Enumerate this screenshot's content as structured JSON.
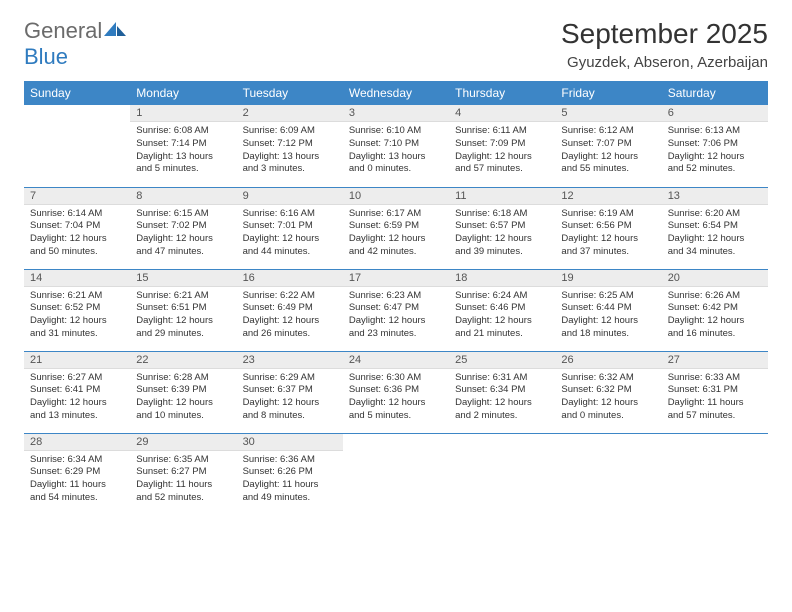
{
  "brand": {
    "word1": "General",
    "word2": "Blue"
  },
  "title": "September 2025",
  "location": "Gyuzdek, Abseron, Azerbaijan",
  "colors": {
    "header_bg": "#3d86c6",
    "header_text": "#ffffff",
    "daynum_bg": "#ededed",
    "daynum_text": "#555555",
    "body_text": "#333333",
    "border": "#3d86c6",
    "logo_gray": "#6b6b6b",
    "logo_blue": "#2f7bbf",
    "page_bg": "#ffffff"
  },
  "typography": {
    "title_fontsize": 28,
    "location_fontsize": 15,
    "weekday_fontsize": 12,
    "daynum_fontsize": 11,
    "body_fontsize": 9.5
  },
  "weekdays": [
    "Sunday",
    "Monday",
    "Tuesday",
    "Wednesday",
    "Thursday",
    "Friday",
    "Saturday"
  ],
  "weeks": [
    [
      null,
      {
        "n": "1",
        "sr": "Sunrise: 6:08 AM",
        "ss": "Sunset: 7:14 PM",
        "dl": "Daylight: 13 hours and 5 minutes."
      },
      {
        "n": "2",
        "sr": "Sunrise: 6:09 AM",
        "ss": "Sunset: 7:12 PM",
        "dl": "Daylight: 13 hours and 3 minutes."
      },
      {
        "n": "3",
        "sr": "Sunrise: 6:10 AM",
        "ss": "Sunset: 7:10 PM",
        "dl": "Daylight: 13 hours and 0 minutes."
      },
      {
        "n": "4",
        "sr": "Sunrise: 6:11 AM",
        "ss": "Sunset: 7:09 PM",
        "dl": "Daylight: 12 hours and 57 minutes."
      },
      {
        "n": "5",
        "sr": "Sunrise: 6:12 AM",
        "ss": "Sunset: 7:07 PM",
        "dl": "Daylight: 12 hours and 55 minutes."
      },
      {
        "n": "6",
        "sr": "Sunrise: 6:13 AM",
        "ss": "Sunset: 7:06 PM",
        "dl": "Daylight: 12 hours and 52 minutes."
      }
    ],
    [
      {
        "n": "7",
        "sr": "Sunrise: 6:14 AM",
        "ss": "Sunset: 7:04 PM",
        "dl": "Daylight: 12 hours and 50 minutes."
      },
      {
        "n": "8",
        "sr": "Sunrise: 6:15 AM",
        "ss": "Sunset: 7:02 PM",
        "dl": "Daylight: 12 hours and 47 minutes."
      },
      {
        "n": "9",
        "sr": "Sunrise: 6:16 AM",
        "ss": "Sunset: 7:01 PM",
        "dl": "Daylight: 12 hours and 44 minutes."
      },
      {
        "n": "10",
        "sr": "Sunrise: 6:17 AM",
        "ss": "Sunset: 6:59 PM",
        "dl": "Daylight: 12 hours and 42 minutes."
      },
      {
        "n": "11",
        "sr": "Sunrise: 6:18 AM",
        "ss": "Sunset: 6:57 PM",
        "dl": "Daylight: 12 hours and 39 minutes."
      },
      {
        "n": "12",
        "sr": "Sunrise: 6:19 AM",
        "ss": "Sunset: 6:56 PM",
        "dl": "Daylight: 12 hours and 37 minutes."
      },
      {
        "n": "13",
        "sr": "Sunrise: 6:20 AM",
        "ss": "Sunset: 6:54 PM",
        "dl": "Daylight: 12 hours and 34 minutes."
      }
    ],
    [
      {
        "n": "14",
        "sr": "Sunrise: 6:21 AM",
        "ss": "Sunset: 6:52 PM",
        "dl": "Daylight: 12 hours and 31 minutes."
      },
      {
        "n": "15",
        "sr": "Sunrise: 6:21 AM",
        "ss": "Sunset: 6:51 PM",
        "dl": "Daylight: 12 hours and 29 minutes."
      },
      {
        "n": "16",
        "sr": "Sunrise: 6:22 AM",
        "ss": "Sunset: 6:49 PM",
        "dl": "Daylight: 12 hours and 26 minutes."
      },
      {
        "n": "17",
        "sr": "Sunrise: 6:23 AM",
        "ss": "Sunset: 6:47 PM",
        "dl": "Daylight: 12 hours and 23 minutes."
      },
      {
        "n": "18",
        "sr": "Sunrise: 6:24 AM",
        "ss": "Sunset: 6:46 PM",
        "dl": "Daylight: 12 hours and 21 minutes."
      },
      {
        "n": "19",
        "sr": "Sunrise: 6:25 AM",
        "ss": "Sunset: 6:44 PM",
        "dl": "Daylight: 12 hours and 18 minutes."
      },
      {
        "n": "20",
        "sr": "Sunrise: 6:26 AM",
        "ss": "Sunset: 6:42 PM",
        "dl": "Daylight: 12 hours and 16 minutes."
      }
    ],
    [
      {
        "n": "21",
        "sr": "Sunrise: 6:27 AM",
        "ss": "Sunset: 6:41 PM",
        "dl": "Daylight: 12 hours and 13 minutes."
      },
      {
        "n": "22",
        "sr": "Sunrise: 6:28 AM",
        "ss": "Sunset: 6:39 PM",
        "dl": "Daylight: 12 hours and 10 minutes."
      },
      {
        "n": "23",
        "sr": "Sunrise: 6:29 AM",
        "ss": "Sunset: 6:37 PM",
        "dl": "Daylight: 12 hours and 8 minutes."
      },
      {
        "n": "24",
        "sr": "Sunrise: 6:30 AM",
        "ss": "Sunset: 6:36 PM",
        "dl": "Daylight: 12 hours and 5 minutes."
      },
      {
        "n": "25",
        "sr": "Sunrise: 6:31 AM",
        "ss": "Sunset: 6:34 PM",
        "dl": "Daylight: 12 hours and 2 minutes."
      },
      {
        "n": "26",
        "sr": "Sunrise: 6:32 AM",
        "ss": "Sunset: 6:32 PM",
        "dl": "Daylight: 12 hours and 0 minutes."
      },
      {
        "n": "27",
        "sr": "Sunrise: 6:33 AM",
        "ss": "Sunset: 6:31 PM",
        "dl": "Daylight: 11 hours and 57 minutes."
      }
    ],
    [
      {
        "n": "28",
        "sr": "Sunrise: 6:34 AM",
        "ss": "Sunset: 6:29 PM",
        "dl": "Daylight: 11 hours and 54 minutes."
      },
      {
        "n": "29",
        "sr": "Sunrise: 6:35 AM",
        "ss": "Sunset: 6:27 PM",
        "dl": "Daylight: 11 hours and 52 minutes."
      },
      {
        "n": "30",
        "sr": "Sunrise: 6:36 AM",
        "ss": "Sunset: 6:26 PM",
        "dl": "Daylight: 11 hours and 49 minutes."
      },
      null,
      null,
      null,
      null
    ]
  ]
}
